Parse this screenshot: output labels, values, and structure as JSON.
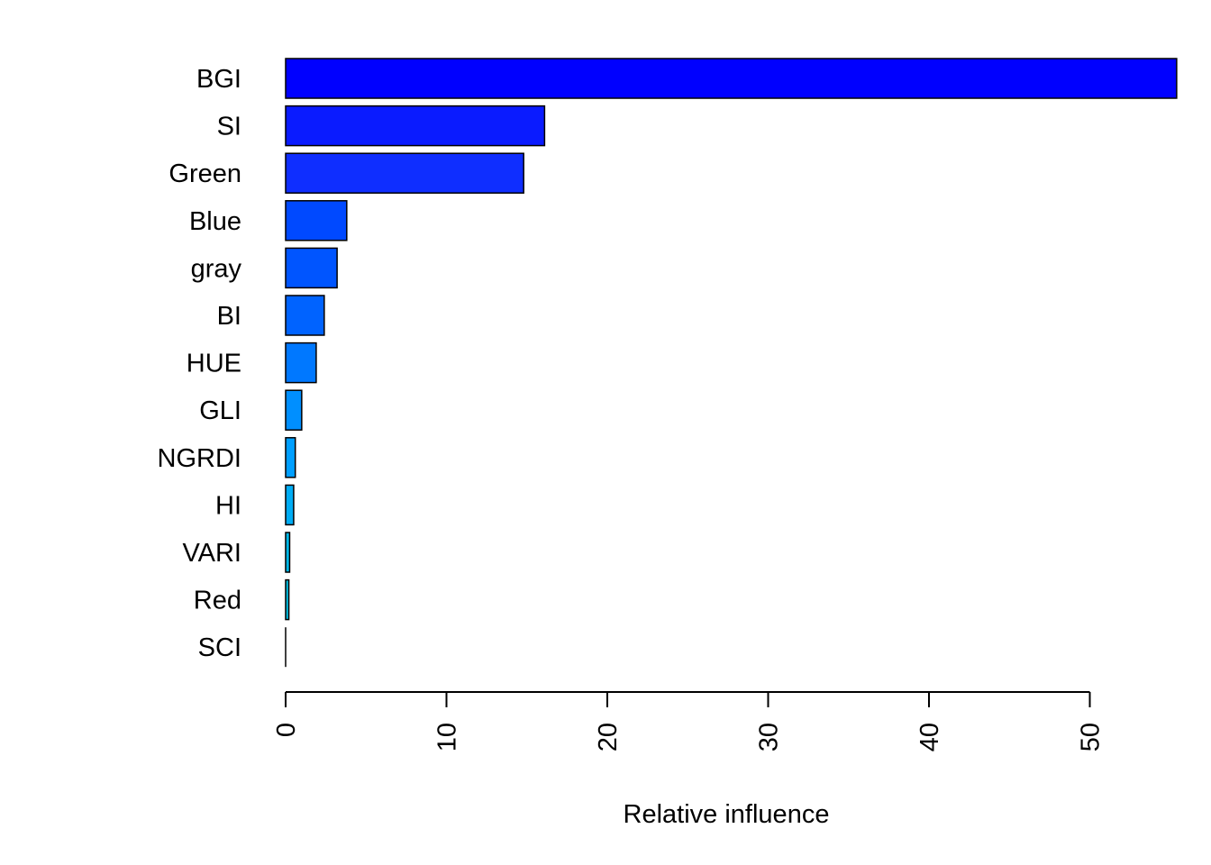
{
  "chart_data": {
    "type": "bar",
    "orientation": "horizontal",
    "categories": [
      "BGI",
      "SI",
      "Green",
      "Blue",
      "gray",
      "BI",
      "HUE",
      "GLI",
      "NGRDI",
      "HI",
      "VARI",
      "Red",
      "SCI"
    ],
    "values": [
      55.4,
      16.1,
      14.8,
      3.8,
      3.2,
      2.4,
      1.9,
      1.0,
      0.6,
      0.5,
      0.25,
      0.2,
      0.0
    ],
    "colors": [
      "#0000FF",
      "#0A1BFF",
      "#0F2EFF",
      "#0049FF",
      "#0055FF",
      "#0063FF",
      "#0078FF",
      "#008FFF",
      "#009FFF",
      "#00ADF5",
      "#00B8E8",
      "#00BEE0",
      "#00C4D8"
    ],
    "xlabel": "Relative influence",
    "ylabel": "",
    "xlim": [
      0,
      55.4
    ],
    "xticks": [
      0,
      10,
      20,
      30,
      40,
      50
    ],
    "grid": false,
    "legend": "none"
  }
}
